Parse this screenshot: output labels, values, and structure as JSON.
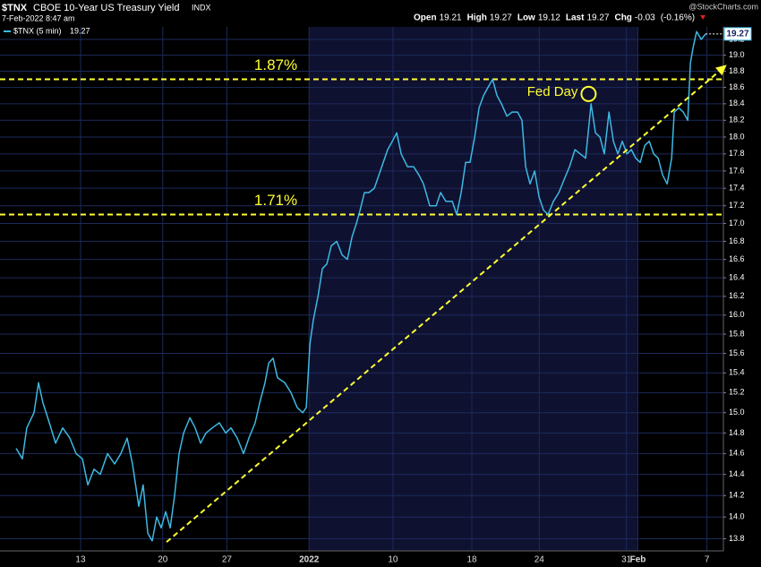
{
  "header": {
    "symbol": "$TNX",
    "name": "CBOE 10-Year US Treasury Yield",
    "exchange": "INDX",
    "datetime": "7-Feb-2022 8:47 am",
    "watermark": "@StockCharts.com",
    "quote": {
      "open_label": "Open",
      "open": 19.21,
      "high_label": "High",
      "high": 19.27,
      "low_label": "Low",
      "low": 19.12,
      "last_label": "Last",
      "last": 19.27,
      "chg_label": "Chg",
      "chg": -0.03,
      "chg_pct": "(-0.16%)"
    }
  },
  "chart_data": {
    "type": "line",
    "log_scale": true,
    "grid": true,
    "background": "#000000",
    "shade_color": "#0f1130",
    "grid_color": "#1d2b5c",
    "shaded_regions": [
      {
        "from": 18.8,
        "to": 38.8
      }
    ],
    "xlim": [
      0,
      44
    ],
    "ylim": [
      13.69,
      19.36
    ],
    "xticks": [
      {
        "value": 4.9,
        "label": "13"
      },
      {
        "value": 9.9,
        "label": "20"
      },
      {
        "value": 13.8,
        "label": "27"
      },
      {
        "value": 18.8,
        "label": "2022"
      },
      {
        "value": 23.9,
        "label": "10"
      },
      {
        "value": 28.7,
        "label": "18"
      },
      {
        "value": 32.8,
        "label": "24"
      },
      {
        "value": 38.1,
        "label": "31"
      },
      {
        "value": 38.8,
        "label": "Feb"
      },
      {
        "value": 43.0,
        "label": "7"
      }
    ],
    "yticks": [
      19.2,
      {
        "value": 19,
        "label": "19.0"
      },
      18.8,
      18.6,
      18.4,
      18.2,
      {
        "value": 18,
        "label": "18.0"
      },
      17.8,
      17.6,
      17.4,
      17.2,
      {
        "value": 17,
        "label": "17.0"
      },
      16.8,
      16.6,
      16.4,
      16.2,
      {
        "value": 16,
        "label": "16.0"
      },
      15.8,
      15.6,
      15.4,
      15.2,
      {
        "value": 15,
        "label": "15.0"
      },
      14.8,
      14.6,
      14.4,
      14.2,
      {
        "value": 14,
        "label": "14.0"
      },
      13.8
    ],
    "series": [
      {
        "name": "$TNX (5 min)",
        "color": "#3db9e3",
        "x": [
          0.98,
          1.36,
          1.63,
          2.07,
          2.34,
          2.61,
          3.0,
          3.38,
          3.81,
          4.25,
          4.63,
          5.01,
          5.34,
          5.72,
          6.1,
          6.54,
          6.97,
          7.35,
          7.73,
          8.06,
          8.44,
          8.71,
          8.99,
          9.26,
          9.53,
          9.8,
          10.08,
          10.35,
          10.62,
          10.89,
          11.17,
          11.55,
          11.87,
          12.2,
          12.53,
          12.91,
          13.34,
          13.73,
          14.05,
          14.43,
          14.81,
          15.14,
          15.52,
          15.8,
          16.12,
          16.34,
          16.61,
          16.88,
          17.32,
          17.7,
          18.08,
          18.41,
          18.63,
          18.85,
          19.06,
          19.34,
          19.61,
          19.88,
          20.15,
          20.48,
          20.81,
          21.13,
          21.41,
          21.68,
          21.9,
          22.17,
          22.44,
          22.77,
          23.04,
          23.31,
          23.58,
          23.86,
          24.13,
          24.4,
          24.78,
          25.16,
          25.49,
          25.76,
          26.14,
          26.53,
          26.8,
          27.12,
          27.51,
          27.78,
          28.05,
          28.32,
          28.59,
          28.87,
          29.14,
          29.41,
          29.68,
          29.96,
          30.23,
          30.5,
          30.83,
          31.15,
          31.48,
          31.75,
          31.97,
          32.24,
          32.52,
          32.79,
          33.06,
          33.33,
          33.66,
          33.99,
          34.31,
          34.64,
          34.97,
          35.29,
          35.62,
          35.95,
          36.22,
          36.49,
          36.76,
          37.04,
          37.31,
          37.58,
          37.85,
          38.13,
          38.4,
          38.67,
          38.94,
          39.22,
          39.49,
          39.76,
          40.03,
          40.31,
          40.58,
          40.85,
          41.01,
          41.29,
          41.56,
          41.83,
          41.99,
          42.16,
          42.37,
          42.65,
          42.92
        ],
        "values": [
          14.65,
          14.55,
          14.85,
          15.0,
          15.3,
          15.1,
          14.9,
          14.7,
          14.85,
          14.75,
          14.6,
          14.55,
          14.3,
          14.45,
          14.4,
          14.6,
          14.5,
          14.6,
          14.75,
          14.5,
          14.1,
          14.3,
          13.85,
          13.78,
          14.0,
          13.9,
          14.05,
          13.9,
          14.2,
          14.6,
          14.8,
          14.95,
          14.85,
          14.7,
          14.8,
          14.85,
          14.9,
          14.8,
          14.85,
          14.75,
          14.6,
          14.75,
          14.9,
          15.1,
          15.3,
          15.5,
          15.55,
          15.35,
          15.3,
          15.2,
          15.05,
          15.0,
          15.05,
          15.7,
          15.95,
          16.2,
          16.5,
          16.55,
          16.75,
          16.8,
          16.65,
          16.6,
          16.85,
          17.0,
          17.15,
          17.35,
          17.35,
          17.4,
          17.55,
          17.7,
          17.85,
          17.95,
          18.05,
          17.8,
          17.65,
          17.65,
          17.55,
          17.45,
          17.2,
          17.2,
          17.35,
          17.25,
          17.25,
          17.1,
          17.35,
          17.7,
          17.7,
          18.0,
          18.35,
          18.5,
          18.6,
          18.7,
          18.5,
          18.4,
          18.25,
          18.3,
          18.3,
          18.2,
          17.65,
          17.45,
          17.6,
          17.3,
          17.15,
          17.1,
          17.25,
          17.35,
          17.5,
          17.65,
          17.85,
          17.8,
          17.75,
          18.4,
          18.05,
          18.0,
          17.8,
          18.3,
          17.95,
          17.8,
          17.95,
          17.8,
          17.85,
          17.75,
          17.7,
          17.9,
          17.95,
          17.8,
          17.75,
          17.55,
          17.45,
          17.75,
          18.3,
          18.35,
          18.3,
          18.2,
          18.9,
          19.1,
          19.3,
          19.2,
          19.27
        ]
      }
    ],
    "levels": [
      {
        "text": "1.87%",
        "y": 18.7,
        "color": "#ffff33"
      },
      {
        "text": "1.71%",
        "y": 17.1,
        "color": "#ffff33"
      }
    ],
    "trendline": {
      "x": [
        10.13,
        44.2
      ],
      "y": [
        13.77,
        18.88
      ],
      "color": "#ffff33"
    },
    "fed_day": {
      "text": "Fed Day",
      "x": 35.8,
      "y": 18.52,
      "color": "#ffff33"
    }
  }
}
